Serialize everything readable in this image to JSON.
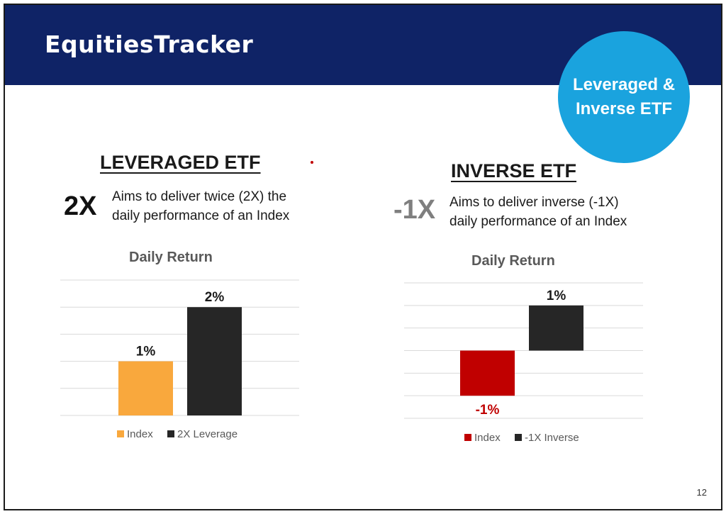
{
  "brand": {
    "name": "EquitiesTracker"
  },
  "badge": {
    "line1": "Leveraged &",
    "line2": "Inverse ETF"
  },
  "leveraged": {
    "title": "LEVERAGED ETF",
    "multiplier": "2X",
    "desc_line1": "Aims to deliver twice (2X) the",
    "desc_line2": "daily performance of an Index"
  },
  "inverse": {
    "title": "INVERSE ETF",
    "multiplier": "-1X",
    "desc_line1": "Aims to deliver inverse (-1X)",
    "desc_line2": "daily performance of an Index"
  },
  "page_number": "12",
  "colors": {
    "header": "#0f2366",
    "badge": "#1aa3de",
    "index_orange": "#f9a83d",
    "index_red": "#c00000",
    "dark_bar": "#262626"
  },
  "chart_data": [
    {
      "type": "bar",
      "title": "Daily Return",
      "categories": [
        "Index",
        "2X Leverage"
      ],
      "values": [
        1,
        2
      ],
      "data_labels": [
        "1%",
        "2%"
      ],
      "colors": [
        "#f9a83d",
        "#262626"
      ],
      "ylim": [
        0,
        2.5
      ],
      "grid": true,
      "legend": "bottom"
    },
    {
      "type": "bar",
      "title": "Daily Return",
      "categories": [
        "Index",
        "-1X Inverse"
      ],
      "values": [
        -1,
        1
      ],
      "data_labels": [
        "-1%",
        "1%"
      ],
      "colors": [
        "#c00000",
        "#262626"
      ],
      "ylim": [
        -1.5,
        1.5
      ],
      "grid": true,
      "legend": "bottom"
    }
  ]
}
